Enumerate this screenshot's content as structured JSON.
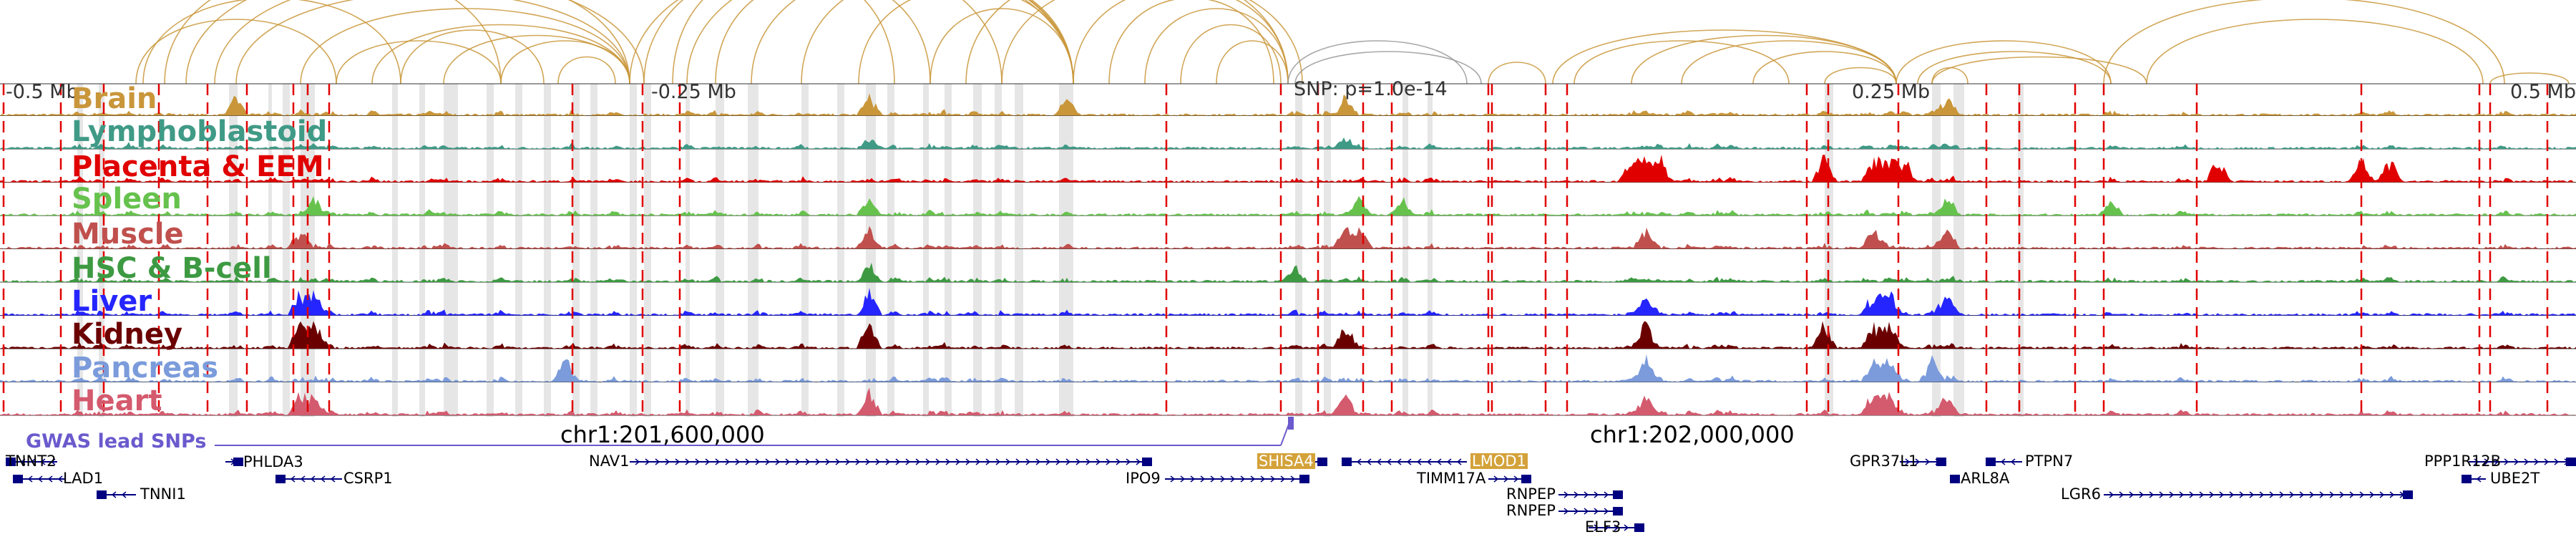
{
  "colors": {
    "arc": "#c9963a",
    "arc_snp": "#999999",
    "dashed": "#e00000",
    "shade": "#cccccc",
    "gwas": "#6a5acd",
    "gene": "#000080",
    "highlight": "#d4a23a"
  },
  "axis": {
    "labels": [
      {
        "text": "-0.5 Mb"
      },
      {
        "text": "-0.25 Mb"
      },
      {
        "text": "SNP: p=1.0e-14"
      },
      {
        "text": "0.25 Mb"
      },
      {
        "text": "0.5 Mb"
      }
    ]
  },
  "coordinates": [
    {
      "text": "chr1:201,600,000"
    },
    {
      "text": "chr1:202,000,000"
    }
  ],
  "gwas_label": "GWAS lead SNPs",
  "tracks": [
    {
      "name": "Brain",
      "color": "#c9963a"
    },
    {
      "name": "Lymphoblastoid",
      "color": "#3f9a86"
    },
    {
      "name": "Placenta & EEM",
      "color": "#e00000"
    },
    {
      "name": "Spleen",
      "color": "#66c24d"
    },
    {
      "name": "Muscle",
      "color": "#c0504d"
    },
    {
      "name": "HSC & B-cell",
      "color": "#3d9a42"
    },
    {
      "name": "Liver",
      "color": "#2525ff"
    },
    {
      "name": "Kidney",
      "color": "#6b0000"
    },
    {
      "name": "Pancreas",
      "color": "#7b9bdb"
    },
    {
      "name": "Heart",
      "color": "#d45a6e"
    }
  ],
  "genes": [
    {
      "name": "TNNT2",
      "highlight": false
    },
    {
      "name": "LAD1",
      "highlight": false
    },
    {
      "name": "TNNI1",
      "highlight": false
    },
    {
      "name": "PHLDA3",
      "highlight": false
    },
    {
      "name": "CSRP1",
      "highlight": false
    },
    {
      "name": "NAV1",
      "highlight": false
    },
    {
      "name": "IPO9",
      "highlight": false
    },
    {
      "name": "SHISA4",
      "highlight": true
    },
    {
      "name": "LMOD1",
      "highlight": true
    },
    {
      "name": "TIMM17A",
      "highlight": false
    },
    {
      "name": "RNPEP",
      "highlight": false
    },
    {
      "name": "RNPEP",
      "highlight": false
    },
    {
      "name": "ELF3",
      "highlight": false
    },
    {
      "name": "GPR37L1",
      "highlight": false
    },
    {
      "name": "ARL8A",
      "highlight": false
    },
    {
      "name": "PTPN7",
      "highlight": false
    },
    {
      "name": "LGR6",
      "highlight": false
    },
    {
      "name": "PPP1R12B",
      "highlight": false
    },
    {
      "name": "UBE2T",
      "highlight": false
    }
  ]
}
